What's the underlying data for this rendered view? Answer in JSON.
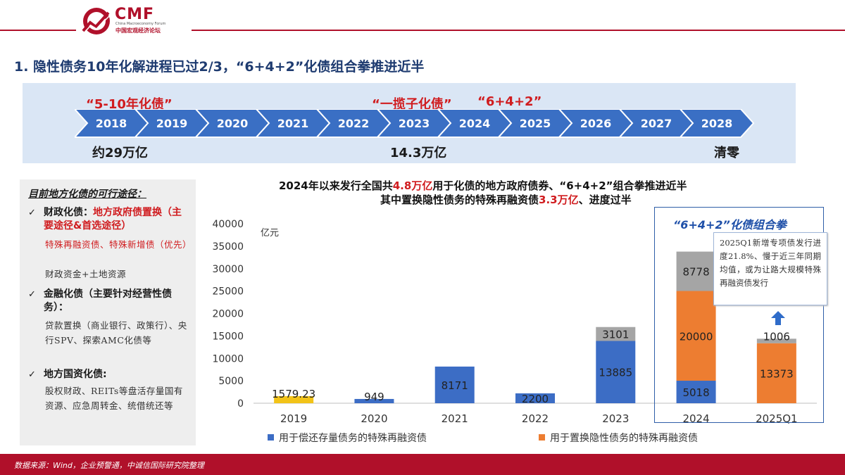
{
  "header": {
    "logo_text": "CMF",
    "logo_sub": "China Macroeconomy Forum",
    "logo_cn": "中国宏观经济论坛"
  },
  "page_title": "1. 隐性债务10年化解进程已过2/3，“6+4+2”化债组合拳推进近半",
  "timeline": {
    "years": [
      "2018",
      "2019",
      "2020",
      "2021",
      "2022",
      "2023",
      "2024",
      "2025",
      "2026",
      "2027",
      "2028"
    ],
    "top_label_left": "“5-10年化债”",
    "top_label_mid": "“一揽子化债”",
    "top_label_right": "“6+4+2”",
    "bottom_left": "约29万亿",
    "bottom_mid": "14.3万亿",
    "bottom_right": "清零",
    "arrow_color": "#3a6fc4",
    "highlight_color": "#d01c1f"
  },
  "routes": {
    "title": "目前地方化债的可行途径：",
    "items": [
      {
        "head_pre": "财政化债：",
        "head_red": "地方政府债置换（主要途径&首选途径）",
        "body_red": "特殊再融资债、特殊新增债（优先）",
        "body": "财政资金+土地资源"
      },
      {
        "head_pre": "金融化债（主要针对经营性债务）：",
        "head_red": "",
        "body_red": "",
        "body": "贷款置换（商业银行、政策行）、央行SPV、探索AMC化债等"
      },
      {
        "head_pre": "地方国资化债:",
        "head_red": "",
        "body_red": "",
        "body": "股权财政、REITs等盘活存量国有资源、应急周转金、统借统还等"
      }
    ]
  },
  "chart_titles": {
    "line1_pre": "2024年以来发行全国共",
    "line1_hl": "4.8万亿",
    "line1_post": "用于化债的地方政府债券、“6+4+2”组合拳推进近半",
    "line2_pre": "其中置换隐性债务的特殊再融资债",
    "line2_hl": "3.3万亿",
    "line2_post": "、进度过半"
  },
  "highlight": {
    "title": "“6+4+2”化债组合拳",
    "note": "2025Q1新增专项债发行进度21.8%、慢于近三年同期均值，或为让路大规模特殊再融资债发行"
  },
  "chart_data": {
    "type": "bar",
    "stacked": true,
    "unit_label": "亿元",
    "categories": [
      "2019",
      "2020",
      "2021",
      "2022",
      "2023",
      "2024",
      "2025Q1"
    ],
    "ylim": [
      0,
      40000
    ],
    "yticks": [
      0,
      5000,
      10000,
      15000,
      20000,
      25000,
      30000,
      35000,
      40000
    ],
    "series": [
      {
        "name": "用于偿还存量债务的特殊再融资债",
        "color": "#3c6dc5",
        "values": [
          0,
          949,
          8171,
          2200,
          13885,
          5018,
          0
        ],
        "labels": [
          "",
          "949",
          "8171",
          "2200",
          "13885",
          "5018",
          ""
        ]
      },
      {
        "name": "用于置换隐性债务的特殊再融资债",
        "color": "#ed7d31",
        "values": [
          1579.23,
          0,
          0,
          0,
          0,
          20000,
          13373
        ],
        "labels": [
          "1579.23",
          "",
          "",
          "",
          "",
          "20000",
          "13373"
        ]
      },
      {
        "name": "",
        "color": "#a5a5a5",
        "values": [
          0,
          0,
          0,
          0,
          3101,
          8778,
          1006
        ],
        "labels": [
          "",
          "",
          "",
          "",
          "3101",
          "8778",
          "1006"
        ]
      }
    ],
    "first_bar_color": "#f2c318",
    "legend": [
      "用于偿还存量债务的特殊再融资债",
      "用于置换隐性债务的特殊再融资债"
    ],
    "legend_position": "bottom",
    "grid": false
  },
  "footer": {
    "source": "数据来源：Wind，企业预警通，中诚信国际研究院整理"
  }
}
